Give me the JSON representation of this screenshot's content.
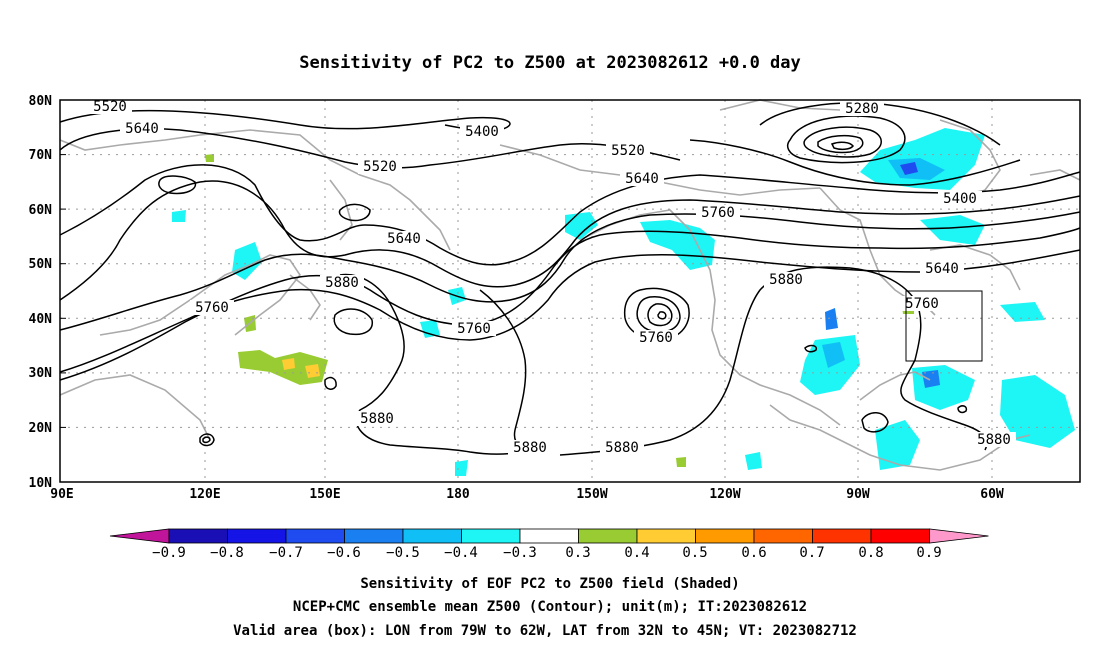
{
  "title": "Sensitivity of PC2 to Z500 at 2023082612 +0.0 day",
  "lat_ticks": [
    "10N",
    "20N",
    "30N",
    "40N",
    "50N",
    "60N",
    "70N",
    "80N"
  ],
  "lon_ticks": [
    "90E",
    "120E",
    "150E",
    "180",
    "150W",
    "120W",
    "90W",
    "60W"
  ],
  "contour_labels": [
    "5520",
    "5640",
    "5400",
    "5520",
    "5520",
    "5640",
    "5280",
    "5400",
    "5760",
    "5640",
    "5760",
    "5640",
    "5880",
    "5760",
    "5760",
    "5880",
    "5760",
    "5880",
    "5880",
    "5880",
    "5880"
  ],
  "colorbar": {
    "labels": [
      "−0.9",
      "−0.8",
      "−0.7",
      "−0.6",
      "−0.5",
      "−0.4",
      "−0.3",
      "0.3",
      "0.4",
      "0.5",
      "0.6",
      "0.7",
      "0.8",
      "0.9"
    ],
    "colors": [
      "#c0149a",
      "#1a0fb4",
      "#1414e6",
      "#1f4cf0",
      "#1a7ff0",
      "#10bff5",
      "#1ef5f5",
      "#ffffff",
      "#99cc33",
      "#ffcc33",
      "#ff9a00",
      "#ff6600",
      "#ff3300",
      "#ff0000",
      "#ff99cc"
    ]
  },
  "valid_box": {
    "lon_min": -79,
    "lon_max": -62,
    "lat_min": 32,
    "lat_max": 45
  },
  "footer": {
    "line1": "Sensitivity of EOF PC2 to Z500 field (Shaded)",
    "line2": "NCEP+CMC ensemble mean Z500 (Contour); unit(m); IT:2023082612",
    "line3": "Valid area (box): LON from 79W to 62W, LAT from 32N to 45N; VT: 2023082712"
  }
}
